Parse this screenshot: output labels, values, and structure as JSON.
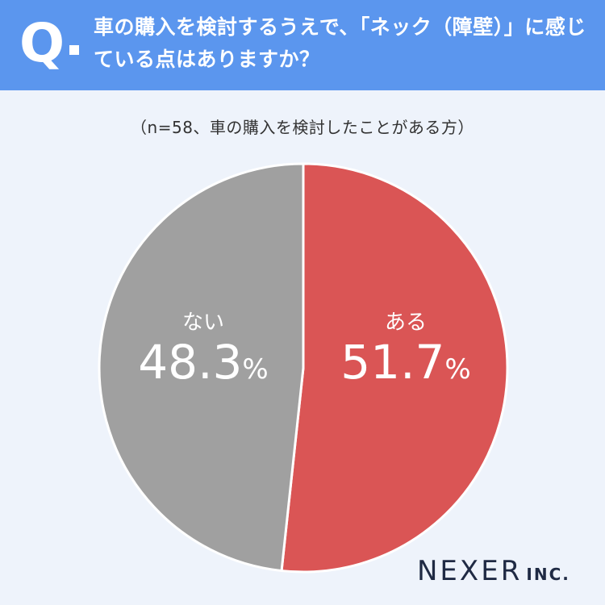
{
  "header": {
    "q_mark": "Q",
    "question": "車の購入を検討するうえで、「ネック（障壁）」に感じている点はありますか？"
  },
  "sample_note": "（n=58、車の購入を検討したことがある方）",
  "colors": {
    "header_bg": "#5b96ee",
    "page_bg": "#eef3fb",
    "yes": "#da5555",
    "no": "#a0a0a0"
  },
  "chart_data": {
    "type": "pie",
    "title": "",
    "slices": [
      {
        "label": "ある",
        "value": 51.7,
        "value_text": "51.7",
        "unit": "%",
        "color": "#da5555"
      },
      {
        "label": "ない",
        "value": 48.3,
        "value_text": "48.3",
        "unit": "%",
        "color": "#a0a0a0"
      }
    ]
  },
  "logo": {
    "main": "NEXER",
    "sub": "INC."
  }
}
